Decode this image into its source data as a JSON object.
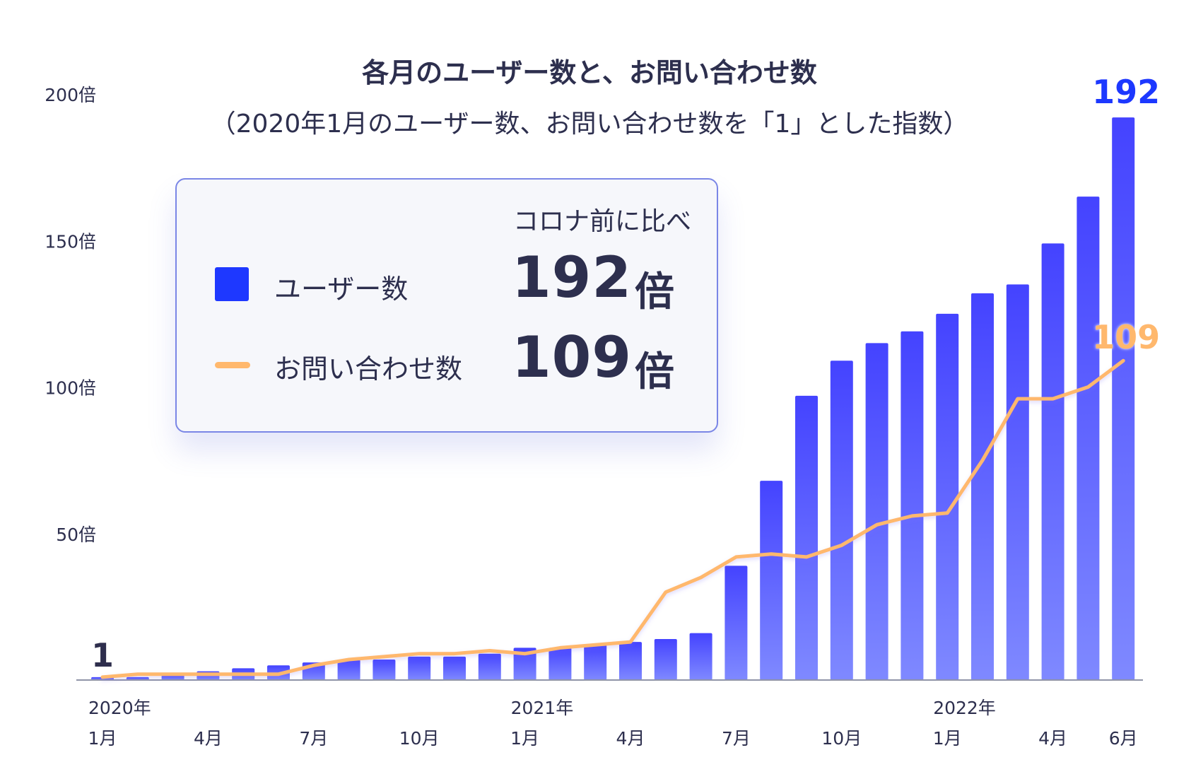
{
  "title": "各月のユーザー数と、お問い合わせ数",
  "subtitle": "（2020年1月のユーザー数、お問い合わせ数を「1」とした指数）",
  "legend": {
    "header": "コロナ前に比べ",
    "users_label": "ユーザー数",
    "users_value": "192",
    "users_unit": "倍",
    "inquiries_label": "お問い合わせ数",
    "inquiries_value": "109",
    "inquiries_unit": "倍"
  },
  "colors": {
    "bar_top": "#4443ff",
    "bar_bottom": "#7f89ff",
    "line": "#ffb86d",
    "text": "#2d2f4e",
    "axis": "#9094a8",
    "users_highlight": "#1e38ff",
    "inquiries_highlight": "#ffb86d"
  },
  "chart_data": {
    "type": "bar",
    "ylim": [
      0,
      200
    ],
    "yticks": [
      {
        "value": 200,
        "label": "200倍"
      },
      {
        "value": 150,
        "label": "150倍"
      },
      {
        "value": 100,
        "label": "100倍"
      },
      {
        "value": 50,
        "label": "50倍"
      }
    ],
    "categories": [
      "2020-01",
      "2020-02",
      "2020-03",
      "2020-04",
      "2020-05",
      "2020-06",
      "2020-07",
      "2020-08",
      "2020-09",
      "2020-10",
      "2020-11",
      "2020-12",
      "2021-01",
      "2021-02",
      "2021-03",
      "2021-04",
      "2021-05",
      "2021-06",
      "2021-07",
      "2021-08",
      "2021-09",
      "2021-10",
      "2021-11",
      "2021-12",
      "2022-01",
      "2022-02",
      "2022-03",
      "2022-04",
      "2022-05",
      "2022-06"
    ],
    "series": [
      {
        "name": "ユーザー数",
        "type": "bar",
        "values": [
          1,
          1,
          2,
          3,
          4,
          5,
          6,
          7,
          7,
          8,
          8,
          9,
          11,
          11,
          12,
          13,
          14,
          16,
          39,
          68,
          97,
          109,
          115,
          119,
          125,
          132,
          135,
          149,
          165,
          192
        ]
      },
      {
        "name": "お問い合わせ数",
        "type": "line",
        "values": [
          1,
          2,
          2,
          2,
          2,
          2,
          5,
          7,
          8,
          9,
          9,
          10,
          9,
          11,
          12,
          13,
          30,
          35,
          42,
          43,
          42,
          46,
          53,
          56,
          57,
          75,
          96,
          96,
          100,
          109
        ]
      }
    ],
    "value_labels": {
      "first": "1",
      "last_users": "192",
      "last_inquiries": "109"
    },
    "x_year_labels": [
      {
        "index": 0,
        "label": "2020年"
      },
      {
        "index": 12,
        "label": "2021年"
      },
      {
        "index": 24,
        "label": "2022年"
      }
    ],
    "x_month_labels": [
      {
        "index": 0,
        "label": "1月"
      },
      {
        "index": 3,
        "label": "4月"
      },
      {
        "index": 6,
        "label": "7月"
      },
      {
        "index": 9,
        "label": "10月"
      },
      {
        "index": 12,
        "label": "1月"
      },
      {
        "index": 15,
        "label": "4月"
      },
      {
        "index": 18,
        "label": "7月"
      },
      {
        "index": 21,
        "label": "10月"
      },
      {
        "index": 24,
        "label": "1月"
      },
      {
        "index": 27,
        "label": "4月"
      },
      {
        "index": 29,
        "label": "6月"
      }
    ]
  }
}
